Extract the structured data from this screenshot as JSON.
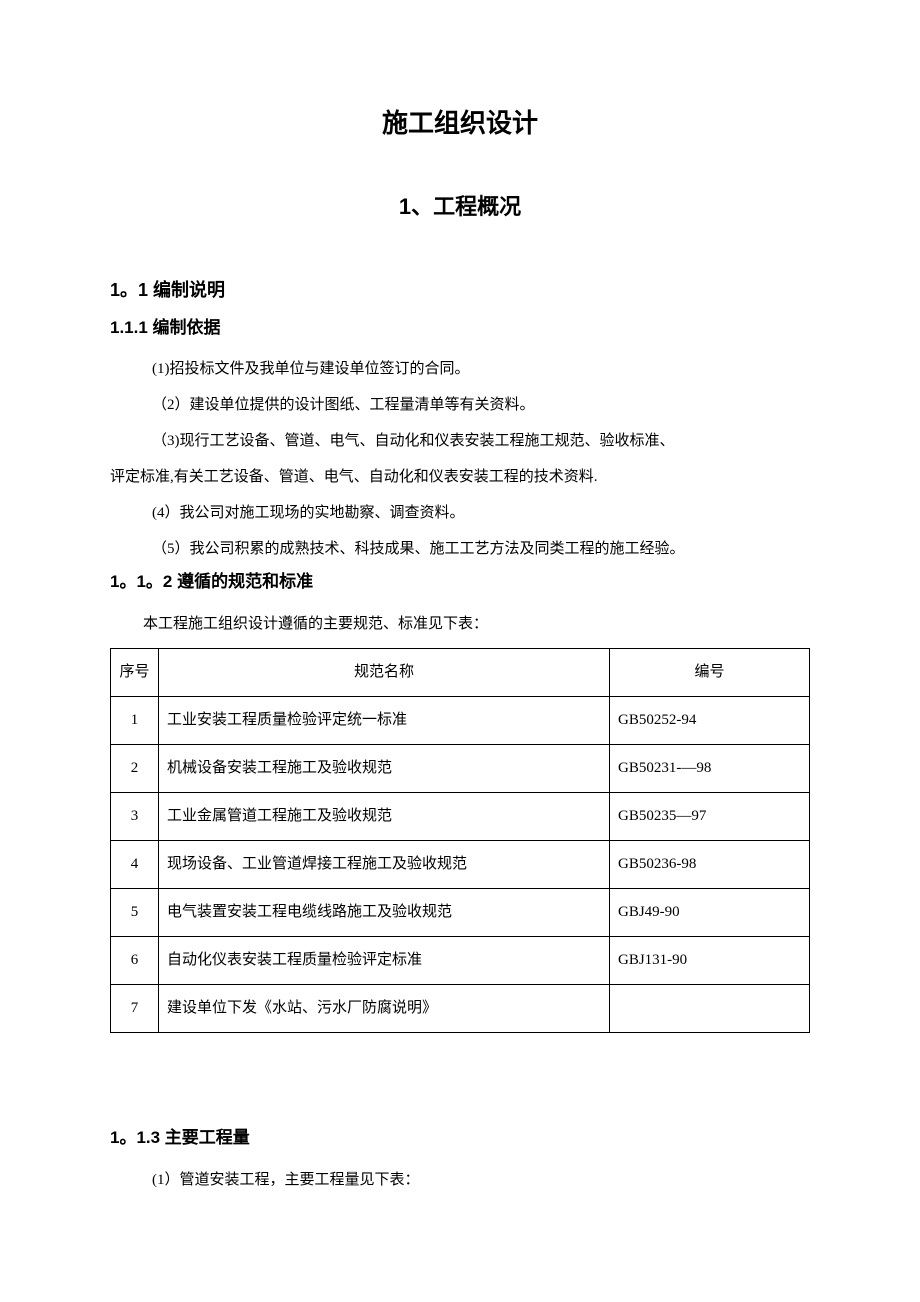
{
  "document": {
    "title": "施工组织设计",
    "chapter": "1、工程概况",
    "section_1_1": "1。1 编制说明",
    "subsection_1_1_1": "1.1.1 编制依据",
    "paragraphs_1_1_1": [
      "(1)招投标文件及我单位与建设单位签订的合同。",
      "（2）建设单位提供的设计图纸、工程量清单等有关资料。",
      "（3)现行工艺设备、管道、电气、自动化和仪表安装工程施工规范、验收标准、",
      "(4）我公司对施工现场的实地勘察、调查资料。",
      "（5）我公司积累的成熟技术、科技成果、施工工艺方法及同类工程的施工经验。"
    ],
    "paragraph_1_1_1_cont": "评定标准,有关工艺设备、管道、电气、自动化和仪表安装工程的技术资料.",
    "subsection_1_1_2": "1。1。2 遵循的规范和标准",
    "paragraph_1_1_2_intro": "本工程施工组织设计遵循的主要规范、标准见下表：",
    "subsection_1_1_3": "1。1.3 主要工程量",
    "paragraph_1_1_3_intro": "(1）管道安装工程，主要工程量见下表："
  },
  "table": {
    "headers": {
      "num": "序号",
      "name": "规范名称",
      "code": "编号"
    },
    "rows": [
      {
        "num": "1",
        "name": "工业安装工程质量检验评定统一标准",
        "code": "GB50252-94"
      },
      {
        "num": "2",
        "name": "机械设备安装工程施工及验收规范",
        "code": "GB50231-—98"
      },
      {
        "num": "3",
        "name": "工业金属管道工程施工及验收规范",
        "code": "GB50235—97"
      },
      {
        "num": "4",
        "name": "现场设备、工业管道焊接工程施工及验收规范",
        "code": "GB50236-98"
      },
      {
        "num": "5",
        "name": "电气装置安装工程电缆线路施工及验收规范",
        "code": "GBJ49-90"
      },
      {
        "num": "6",
        "name": "自动化仪表安装工程质量检验评定标准",
        "code": "GBJ131-90"
      },
      {
        "num": "7",
        "name": "建设单位下发《水站、污水厂防腐说明》",
        "code": ""
      }
    ]
  },
  "style": {
    "background_color": "#ffffff",
    "text_color": "#000000",
    "border_color": "#000000",
    "title_fontsize": 26,
    "chapter_fontsize": 22,
    "section_fontsize": 18,
    "subsection_fontsize": 17,
    "body_fontsize": 15
  }
}
